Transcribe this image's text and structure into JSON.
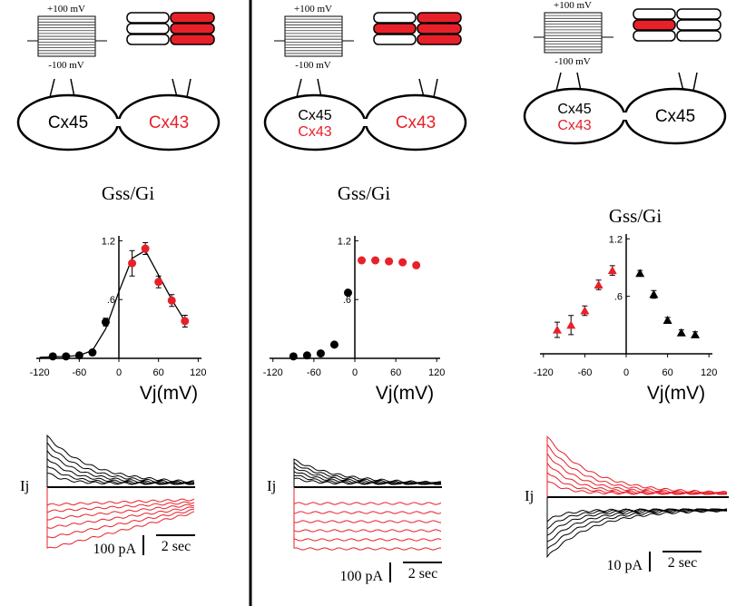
{
  "chart_data": [
    {
      "type": "scatter",
      "title": "Gss/Gi",
      "xlabel": "Vj(mV)",
      "xlim": [
        -125,
        125
      ],
      "ylim": [
        0,
        1.25
      ],
      "xticks": [
        -120,
        -60,
        0,
        60,
        120
      ],
      "yticks": [
        {
          "value": 0.6,
          "label": ".6"
        },
        {
          "value": 1.2,
          "label": "1.2"
        }
      ],
      "series": [
        {
          "mode": "line",
          "color": "#000000",
          "x": [
            -120,
            -100,
            -80,
            -60,
            -40,
            -20,
            0,
            20,
            40,
            60,
            80,
            100
          ],
          "values": [
            0.01,
            0.015,
            0.02,
            0.03,
            0.08,
            0.3,
            0.68,
            1.02,
            1.1,
            0.85,
            0.6,
            0.38
          ]
        },
        {
          "mode": "markers",
          "marker": "circle",
          "color": "#000000",
          "x": [
            -100,
            -80,
            -60,
            -40,
            -20
          ],
          "values": [
            0.02,
            0.02,
            0.03,
            0.06,
            0.37
          ],
          "errors": [
            0,
            0,
            0,
            0,
            0.04
          ]
        },
        {
          "mode": "markers",
          "marker": "circle",
          "color": "#e8202a",
          "x": [
            20,
            40,
            60,
            80,
            100
          ],
          "values": [
            0.97,
            1.12,
            0.78,
            0.59,
            0.38
          ],
          "errors": [
            0.13,
            0.06,
            0.06,
            0.06,
            0.06
          ]
        }
      ]
    },
    {
      "type": "scatter",
      "title": "Gss/Gi",
      "xlabel": "Vj(mV)",
      "xlim": [
        -125,
        125
      ],
      "ylim": [
        0,
        1.25
      ],
      "xticks": [
        -120,
        -60,
        0,
        60,
        120
      ],
      "yticks": [
        {
          "value": 0.6,
          "label": ".6"
        },
        {
          "value": 1.2,
          "label": "1.2"
        }
      ],
      "series": [
        {
          "mode": "markers",
          "marker": "circle",
          "color": "#000000",
          "x": [
            -90,
            -70,
            -50,
            -30,
            -10
          ],
          "values": [
            0.02,
            0.03,
            0.05,
            0.14,
            0.67
          ]
        },
        {
          "mode": "markers",
          "marker": "circle",
          "color": "#e8202a",
          "x": [
            10,
            30,
            50,
            70,
            90
          ],
          "values": [
            1.0,
            1.0,
            0.99,
            0.98,
            0.95
          ]
        }
      ]
    },
    {
      "type": "scatter",
      "title": "Gss/Gi",
      "xlabel": "Vj(mV)",
      "xlim": [
        -125,
        125
      ],
      "ylim": [
        0,
        1.25
      ],
      "xticks": [
        -120,
        -60,
        0,
        60,
        120
      ],
      "yticks": [
        {
          "value": 0.6,
          "label": ".6"
        },
        {
          "value": 1.2,
          "label": "1.2"
        }
      ],
      "series": [
        {
          "mode": "markers",
          "marker": "triangle",
          "color": "#e8202a",
          "x": [
            -100,
            -80,
            -60,
            -40,
            -20
          ],
          "values": [
            0.25,
            0.3,
            0.45,
            0.72,
            0.87
          ],
          "errors": [
            0.08,
            0.1,
            0.05,
            0.05,
            0.05
          ]
        },
        {
          "mode": "markers",
          "marker": "triangle",
          "color": "#000000",
          "x": [
            20,
            40,
            60,
            80,
            100
          ],
          "values": [
            0.84,
            0.62,
            0.35,
            0.22,
            0.2
          ],
          "errors": [
            0.03,
            0.04,
            0.03,
            0.03,
            0.03
          ]
        }
      ]
    }
  ],
  "panels": [
    {
      "protocol_high": "+100 mV",
      "protocol_low": "-100 mV",
      "left_cell": [
        {
          "text": "Cx45",
          "color": "#000000"
        }
      ],
      "right_cell": [
        {
          "text": "Cx43",
          "color": "#e8202a"
        }
      ],
      "trace_label": "Ij",
      "current_scale": "100 pA",
      "time_scale": "2 sec"
    },
    {
      "protocol_high": "+100 mV",
      "protocol_low": "-100 mV",
      "left_cell": [
        {
          "text": "Cx45",
          "color": "#000000"
        },
        {
          "text": "Cx43",
          "color": "#e8202a"
        }
      ],
      "right_cell": [
        {
          "text": "Cx43",
          "color": "#e8202a"
        }
      ],
      "trace_label": "Ij",
      "current_scale": "100 pA",
      "time_scale": "2 sec"
    },
    {
      "protocol_high": "+100 mV",
      "protocol_low": "-100 mV",
      "left_cell": [
        {
          "text": "Cx45",
          "color": "#000000"
        },
        {
          "text": "Cx43",
          "color": "#e8202a"
        }
      ],
      "right_cell": [
        {
          "text": "Cx45",
          "color": "#000000"
        }
      ],
      "trace_label": "Ij",
      "current_scale": "10 pA",
      "time_scale": "2 sec"
    }
  ]
}
